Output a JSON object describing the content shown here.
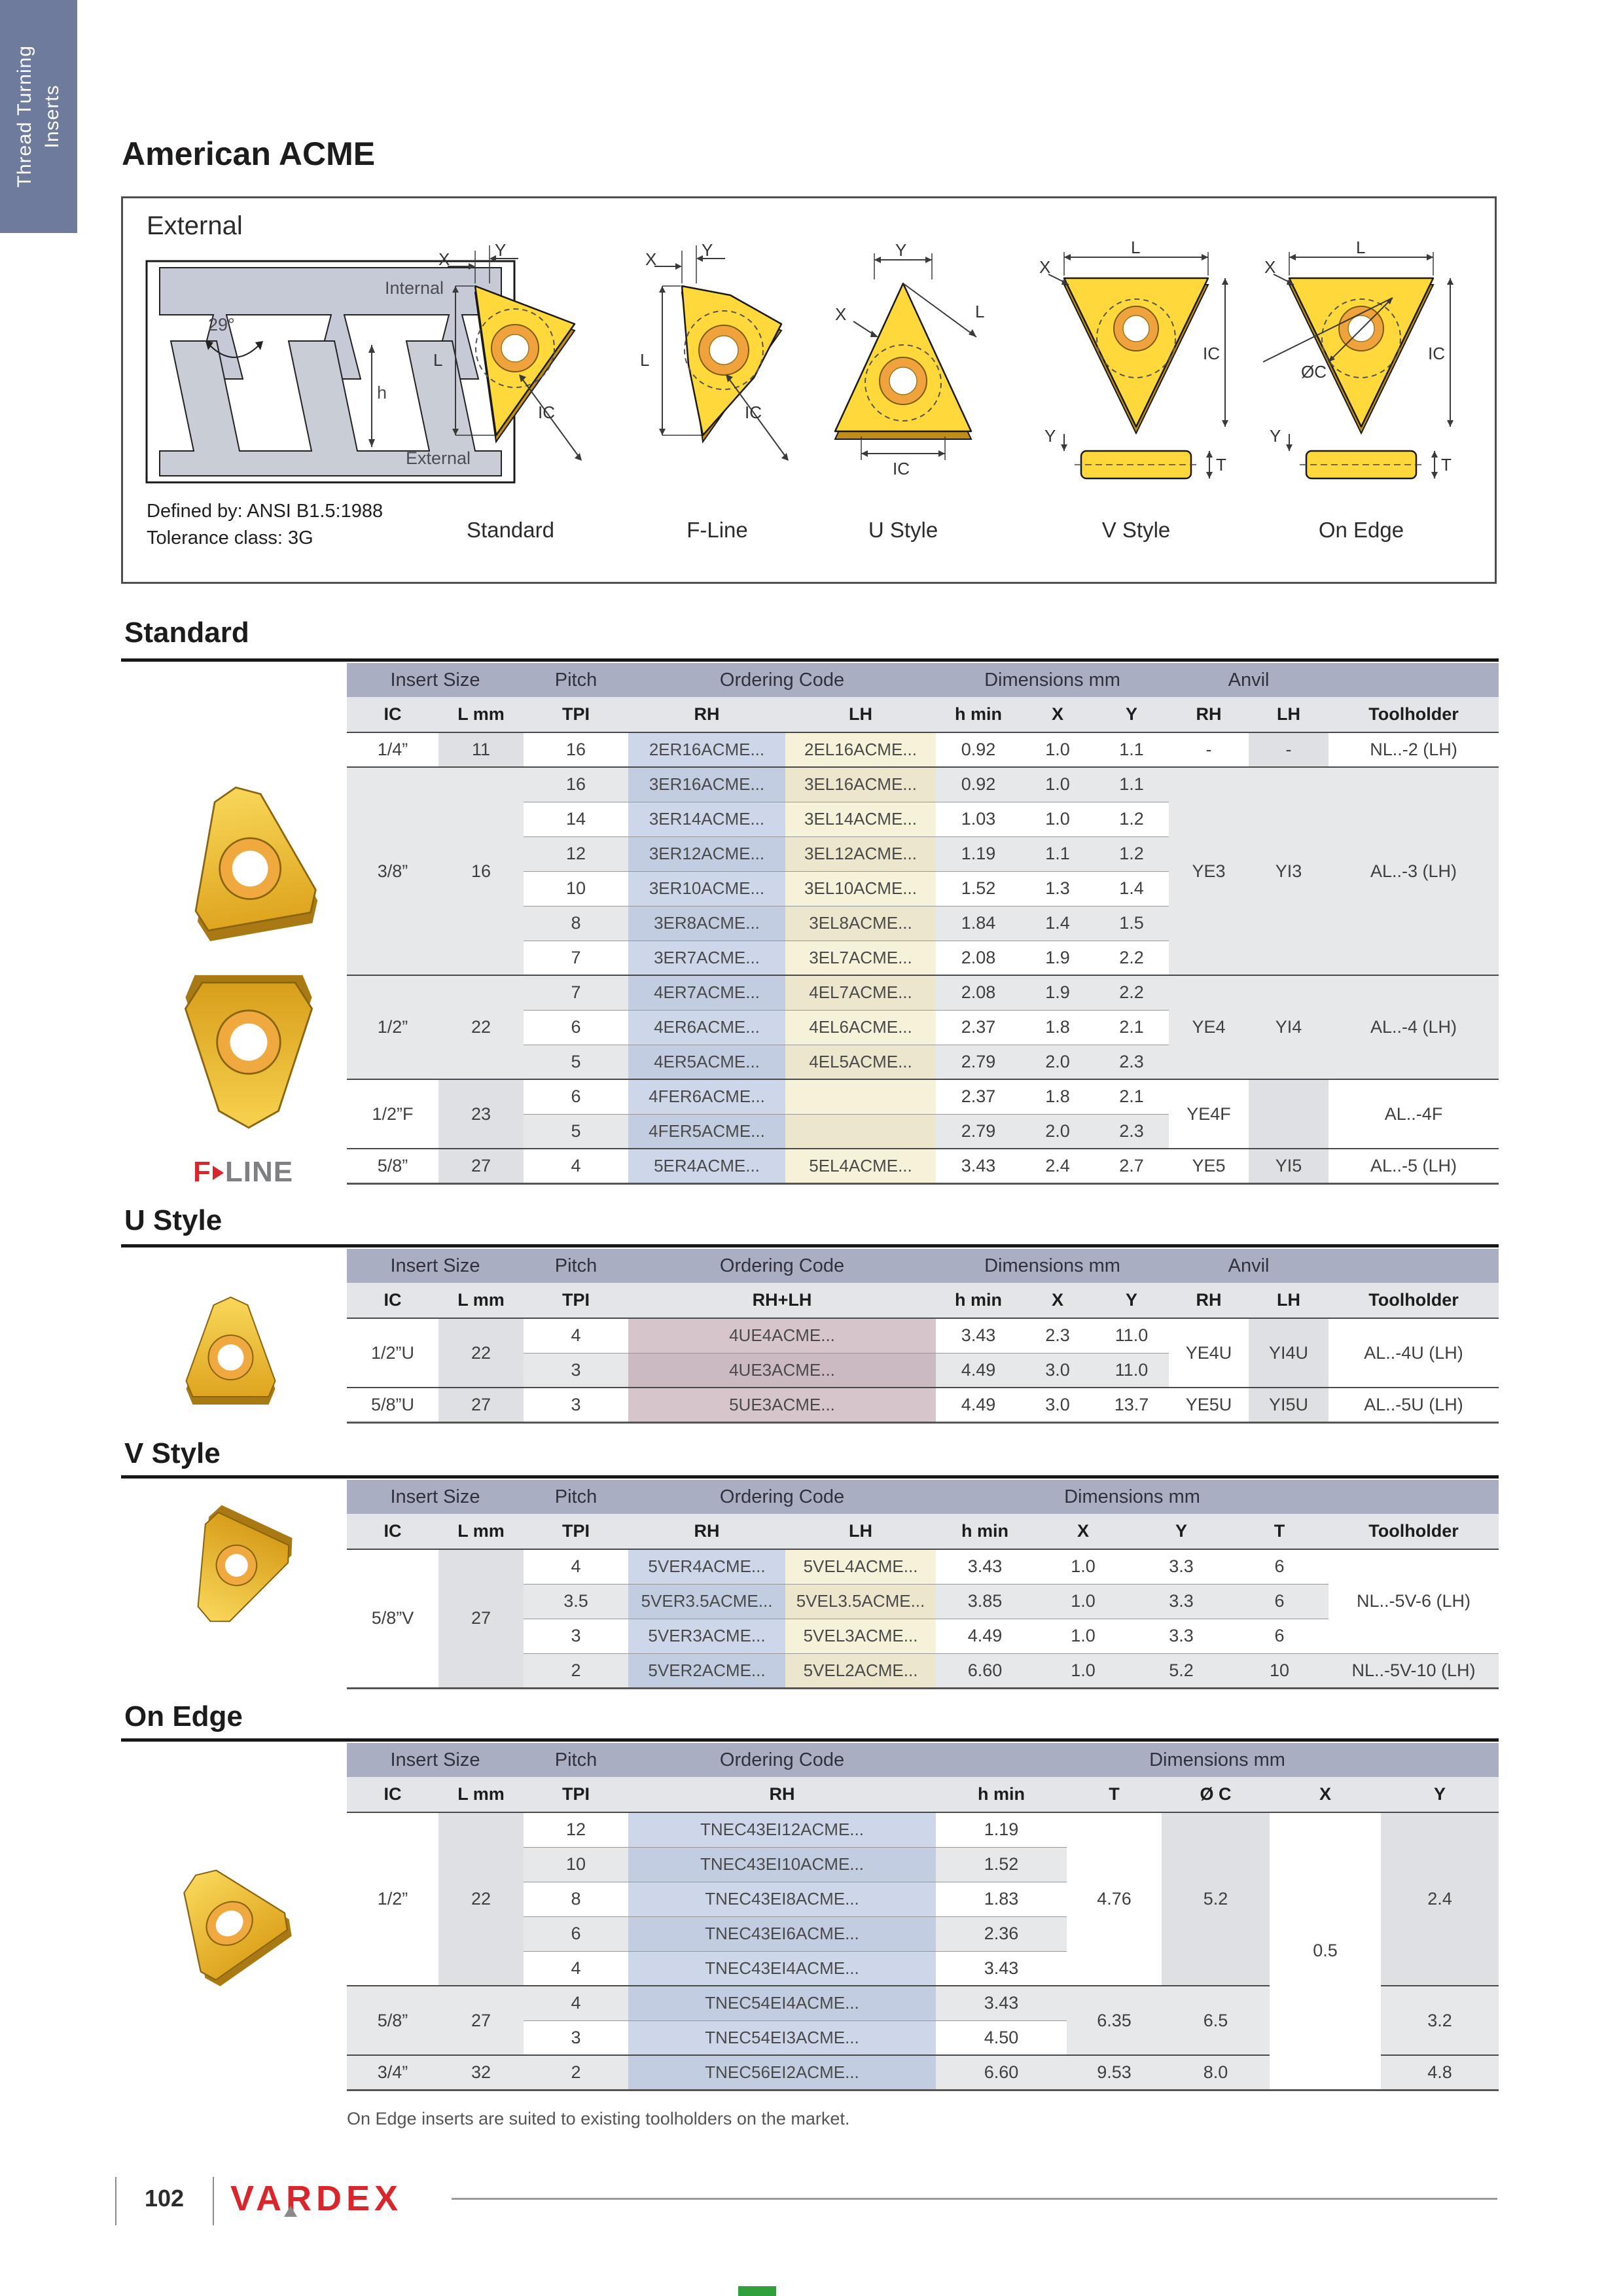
{
  "colors": {
    "brand_red": "#d9252c",
    "insert_gold": "#e9b32c",
    "sidebar_blue": "#6e7b9c",
    "table_band": "#a9aec3"
  },
  "page": {
    "sidebar_line1": "Thread Turning",
    "sidebar_line2": "Inserts",
    "title": "American ACME",
    "number": "102",
    "brand": "VARDEX"
  },
  "header_box": {
    "label": "External",
    "profile": {
      "angle": "29°",
      "internal": "Internal",
      "external": "External",
      "h": "h"
    },
    "defined_by": "Defined by: ANSI B1.5:1988",
    "tolerance": "Tolerance class: 3G",
    "diagrams": [
      {
        "label": "Standard",
        "x": "X",
        "y": "Y",
        "l": "L",
        "ic": "IC"
      },
      {
        "label": "F-Line",
        "x": "X",
        "y": "Y",
        "l": "L",
        "ic": "IC"
      },
      {
        "label": "U Style",
        "x": "X",
        "y": "Y",
        "l": "L",
        "ic": "IC"
      },
      {
        "label": "V Style",
        "x": "X",
        "y": "Y",
        "l": "L",
        "ic": "IC",
        "t": "T"
      },
      {
        "label": "On Edge",
        "x": "X",
        "y": "Y",
        "l": "L",
        "ic": "IC",
        "t": "T",
        "c": "ØC"
      }
    ]
  },
  "fline_logo": {
    "f": "F",
    "line": "LINE"
  },
  "standard": {
    "title": "Standard",
    "header_groups": [
      "Insert Size",
      "Pitch",
      "Ordering Code",
      "Dimensions mm",
      "Anvil",
      ""
    ],
    "sub_headers": [
      "IC",
      "L mm",
      "TPI",
      "RH",
      "LH",
      "h min",
      "X",
      "Y",
      "RH",
      "LH",
      "Toolholder"
    ],
    "groups": [
      {
        "ic": "1/4”",
        "l": "11",
        "anvil_rh": "-",
        "anvil_lh": "-",
        "toolholder": "NL..-2 (LH)",
        "rows": [
          {
            "tpi": "16",
            "rh": "2ER16ACME...",
            "lh": "2EL16ACME...",
            "h": "0.92",
            "x": "1.0",
            "y": "1.1"
          }
        ]
      },
      {
        "ic": "3/8”",
        "l": "16",
        "anvil_rh": "YE3",
        "anvil_lh": "YI3",
        "toolholder": "AL..-3 (LH)",
        "rows": [
          {
            "tpi": "16",
            "rh": "3ER16ACME...",
            "lh": "3EL16ACME...",
            "h": "0.92",
            "x": "1.0",
            "y": "1.1"
          },
          {
            "tpi": "14",
            "rh": "3ER14ACME...",
            "lh": "3EL14ACME...",
            "h": "1.03",
            "x": "1.0",
            "y": "1.2"
          },
          {
            "tpi": "12",
            "rh": "3ER12ACME...",
            "lh": "3EL12ACME...",
            "h": "1.19",
            "x": "1.1",
            "y": "1.2"
          },
          {
            "tpi": "10",
            "rh": "3ER10ACME...",
            "lh": "3EL10ACME...",
            "h": "1.52",
            "x": "1.3",
            "y": "1.4"
          },
          {
            "tpi": "8",
            "rh": "3ER8ACME...",
            "lh": "3EL8ACME...",
            "h": "1.84",
            "x": "1.4",
            "y": "1.5"
          },
          {
            "tpi": "7",
            "rh": "3ER7ACME...",
            "lh": "3EL7ACME...",
            "h": "2.08",
            "x": "1.9",
            "y": "2.2"
          }
        ]
      },
      {
        "ic": "1/2”",
        "l": "22",
        "anvil_rh": "YE4",
        "anvil_lh": "YI4",
        "toolholder": "AL..-4 (LH)",
        "rows": [
          {
            "tpi": "7",
            "rh": "4ER7ACME...",
            "lh": "4EL7ACME...",
            "h": "2.08",
            "x": "1.9",
            "y": "2.2"
          },
          {
            "tpi": "6",
            "rh": "4ER6ACME...",
            "lh": "4EL6ACME...",
            "h": "2.37",
            "x": "1.8",
            "y": "2.1"
          },
          {
            "tpi": "5",
            "rh": "4ER5ACME...",
            "lh": "4EL5ACME...",
            "h": "2.79",
            "x": "2.0",
            "y": "2.3"
          }
        ]
      },
      {
        "ic": "1/2”F",
        "l": "23",
        "anvil_rh": "YE4F",
        "anvil_lh": "",
        "toolholder": "AL..-4F",
        "rows": [
          {
            "tpi": "6",
            "rh": "4FER6ACME...",
            "lh": "",
            "h": "2.37",
            "x": "1.8",
            "y": "2.1"
          },
          {
            "tpi": "5",
            "rh": "4FER5ACME...",
            "lh": "",
            "h": "2.79",
            "x": "2.0",
            "y": "2.3"
          }
        ]
      },
      {
        "ic": "5/8”",
        "l": "27",
        "anvil_rh": "YE5",
        "anvil_lh": "YI5",
        "toolholder": "AL..-5 (LH)",
        "rows": [
          {
            "tpi": "4",
            "rh": "5ER4ACME...",
            "lh": "5EL4ACME...",
            "h": "3.43",
            "x": "2.4",
            "y": "2.7"
          }
        ]
      }
    ]
  },
  "u_style": {
    "title": "U Style",
    "header_groups": [
      "Insert Size",
      "Pitch",
      "Ordering Code",
      "Dimensions mm",
      "Anvil",
      ""
    ],
    "sub_headers": [
      "IC",
      "L mm",
      "TPI",
      "RH+LH",
      "h min",
      "X",
      "Y",
      "RH",
      "LH",
      "Toolholder"
    ],
    "groups": [
      {
        "ic": "1/2”U",
        "l": "22",
        "anvil_rh": "YE4U",
        "anvil_lh": "YI4U",
        "toolholder": "AL..-4U (LH)",
        "rows": [
          {
            "tpi": "4",
            "code": "4UE4ACME...",
            "h": "3.43",
            "x": "2.3",
            "y": "11.0"
          },
          {
            "tpi": "3",
            "code": "4UE3ACME...",
            "h": "4.49",
            "x": "3.0",
            "y": "11.0"
          }
        ]
      },
      {
        "ic": "5/8”U",
        "l": "27",
        "anvil_rh": "YE5U",
        "anvil_lh": "YI5U",
        "toolholder": "AL..-5U (LH)",
        "rows": [
          {
            "tpi": "3",
            "code": "5UE3ACME...",
            "h": "4.49",
            "x": "3.0",
            "y": "13.7"
          }
        ]
      }
    ]
  },
  "v_style": {
    "title": "V Style",
    "header_groups": [
      "Insert Size",
      "Pitch",
      "Ordering Code",
      "Dimensions mm",
      ""
    ],
    "sub_headers": [
      "IC",
      "L mm",
      "TPI",
      "RH",
      "LH",
      "h min",
      "X",
      "Y",
      "T",
      "Toolholder"
    ],
    "groups": [
      {
        "ic": "5/8”V",
        "l": "27",
        "toolholders": [
          {
            "label": "NL..-5V-6 (LH)",
            "rows": 3
          },
          {
            "label": "NL..-5V-10 (LH)",
            "rows": 1
          }
        ],
        "rows": [
          {
            "tpi": "4",
            "rh": "5VER4ACME...",
            "lh": "5VEL4ACME...",
            "h": "3.43",
            "x": "1.0",
            "y": "3.3",
            "t": "6"
          },
          {
            "tpi": "3.5",
            "rh": "5VER3.5ACME...",
            "lh": "5VEL3.5ACME...",
            "h": "3.85",
            "x": "1.0",
            "y": "3.3",
            "t": "6"
          },
          {
            "tpi": "3",
            "rh": "5VER3ACME...",
            "lh": "5VEL3ACME...",
            "h": "4.49",
            "x": "1.0",
            "y": "3.3",
            "t": "6"
          },
          {
            "tpi": "2",
            "rh": "5VER2ACME...",
            "lh": "5VEL2ACME...",
            "h": "6.60",
            "x": "1.0",
            "y": "5.2",
            "t": "10"
          }
        ]
      }
    ]
  },
  "on_edge": {
    "title": "On Edge",
    "header_groups": [
      "Insert Size",
      "Pitch",
      "Ordering Code",
      "Dimensions mm"
    ],
    "sub_headers": [
      "IC",
      "L mm",
      "TPI",
      "RH",
      "h min",
      "T",
      "Ø C",
      "X",
      "Y"
    ],
    "x_shared": "0.5",
    "groups": [
      {
        "ic": "1/2”",
        "l": "22",
        "t": "4.76",
        "c": "5.2",
        "y": "2.4",
        "rows": [
          {
            "tpi": "12",
            "rh": "TNEC43EI12ACME...",
            "h": "1.19"
          },
          {
            "tpi": "10",
            "rh": "TNEC43EI10ACME...",
            "h": "1.52"
          },
          {
            "tpi": "8",
            "rh": "TNEC43EI8ACME...",
            "h": "1.83"
          },
          {
            "tpi": "6",
            "rh": "TNEC43EI6ACME...",
            "h": "2.36"
          },
          {
            "tpi": "4",
            "rh": "TNEC43EI4ACME...",
            "h": "3.43"
          }
        ]
      },
      {
        "ic": "5/8”",
        "l": "27",
        "t": "6.35",
        "c": "6.5",
        "y": "3.2",
        "rows": [
          {
            "tpi": "4",
            "rh": "TNEC54EI4ACME...",
            "h": "3.43"
          },
          {
            "tpi": "3",
            "rh": "TNEC54EI3ACME...",
            "h": "4.50"
          }
        ]
      },
      {
        "ic": "3/4”",
        "l": "32",
        "t": "9.53",
        "c": "8.0",
        "y": "4.8",
        "rows": [
          {
            "tpi": "2",
            "rh": "TNEC56EI2ACME...",
            "h": "6.60"
          }
        ]
      }
    ],
    "note": "On Edge inserts are suited to existing toolholders on the market."
  }
}
